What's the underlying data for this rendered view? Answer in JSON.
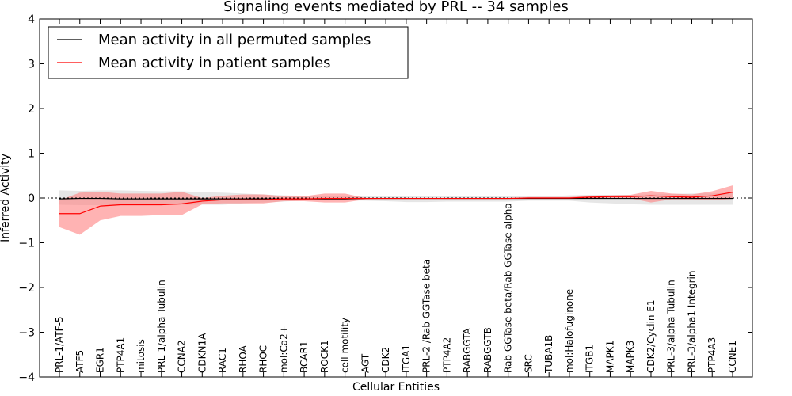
{
  "chart_data": {
    "type": "line",
    "title": "Signaling events mediated by PRL -- 34 samples",
    "xlabel": "Cellular Entities",
    "ylabel": "Inferred Activity",
    "ylim": [
      -4,
      4
    ],
    "yticks": [
      -4,
      -3,
      -2,
      -1,
      0,
      1,
      2,
      3,
      4
    ],
    "ytick_labels": [
      "−4",
      "−3",
      "−2",
      "−1",
      "0",
      "1",
      "2",
      "3",
      "4"
    ],
    "grid": false,
    "legend_position": "top-left",
    "categories": [
      "PRL-1/ATF-5",
      "ATF5",
      "EGR1",
      "PTP4A1",
      "mitosis",
      "PRL-1/alpha Tubulin",
      "CCNA2",
      "CDKN1A",
      "RAC1",
      "RHOA",
      "RHOC",
      "mol:Ca2+",
      "BCAR1",
      "ROCK1",
      "cell motility",
      "AGT",
      "CDK2",
      "ITGA1",
      "PRL-2 /Rab GGTase beta",
      "PTP4A2",
      "RABGGTA",
      "RABGGTB",
      "Rab GGTase beta/Rab GGTase alpha",
      "SRC",
      "TUBA1B",
      "mol:Halofuginone",
      "ITGB1",
      "MAPK1",
      "MAPK3",
      "CDK2/Cyclin E1",
      "PRL-3/alpha Tubulin",
      "PRL-3/alpha1 Integrin",
      "PTP4A3",
      "CCNE1"
    ],
    "series": [
      {
        "name": "Mean activity in all permuted samples",
        "color": "#000000",
        "values": [
          -0.02,
          -0.01,
          -0.01,
          -0.02,
          -0.02,
          -0.02,
          -0.02,
          -0.02,
          -0.02,
          -0.02,
          -0.02,
          -0.02,
          -0.02,
          -0.02,
          -0.02,
          -0.01,
          -0.01,
          -0.01,
          -0.01,
          -0.01,
          -0.01,
          -0.01,
          -0.01,
          -0.01,
          -0.01,
          -0.01,
          -0.01,
          -0.01,
          -0.01,
          -0.01,
          -0.01,
          -0.01,
          -0.01,
          -0.01
        ],
        "band_lower": [
          -0.15,
          -0.16,
          -0.16,
          -0.15,
          -0.15,
          -0.15,
          -0.15,
          -0.15,
          -0.15,
          -0.12,
          -0.1,
          -0.08,
          -0.05,
          -0.05,
          -0.05,
          -0.06,
          -0.07,
          -0.09,
          -0.09,
          -0.08,
          -0.08,
          -0.08,
          -0.08,
          -0.06,
          -0.06,
          -0.06,
          -0.1,
          -0.12,
          -0.14,
          -0.15,
          -0.15,
          -0.15,
          -0.15,
          -0.15
        ],
        "band_upper": [
          0.17,
          0.16,
          0.17,
          0.17,
          0.16,
          0.15,
          0.15,
          0.13,
          0.12,
          0.1,
          0.08,
          0.06,
          0.05,
          0.05,
          0.04,
          0.04,
          0.04,
          0.04,
          0.04,
          0.04,
          0.04,
          0.04,
          0.04,
          0.04,
          0.04,
          0.06,
          0.07,
          0.07,
          0.07,
          0.08,
          0.09,
          0.1,
          0.1,
          0.12
        ]
      },
      {
        "name": "Mean activity in patient samples",
        "color": "#ff0000",
        "values": [
          -0.35,
          -0.35,
          -0.18,
          -0.15,
          -0.15,
          -0.15,
          -0.13,
          -0.07,
          -0.04,
          -0.04,
          -0.04,
          -0.02,
          -0.02,
          -0.01,
          -0.01,
          -0.01,
          -0.01,
          -0.01,
          -0.01,
          -0.01,
          -0.01,
          -0.01,
          -0.01,
          0.0,
          0.0,
          0.0,
          0.02,
          0.03,
          0.03,
          0.05,
          0.03,
          0.02,
          0.05,
          0.13
        ],
        "band_lower": [
          -0.65,
          -0.82,
          -0.5,
          -0.4,
          -0.4,
          -0.38,
          -0.38,
          -0.14,
          -0.12,
          -0.12,
          -0.12,
          -0.07,
          -0.07,
          -0.1,
          -0.1,
          -0.03,
          -0.02,
          -0.02,
          -0.02,
          -0.02,
          -0.02,
          -0.02,
          -0.02,
          -0.02,
          -0.02,
          -0.02,
          -0.01,
          -0.01,
          -0.01,
          -0.1,
          -0.03,
          -0.03,
          -0.05,
          -0.02
        ],
        "band_upper": [
          -0.05,
          0.12,
          0.14,
          0.1,
          0.1,
          0.1,
          0.14,
          0.0,
          0.05,
          0.08,
          0.08,
          0.04,
          0.04,
          0.1,
          0.1,
          0.0,
          0.0,
          0.0,
          0.0,
          0.0,
          0.0,
          0.0,
          0.0,
          0.02,
          0.02,
          0.02,
          0.05,
          0.06,
          0.07,
          0.16,
          0.1,
          0.08,
          0.15,
          0.28
        ]
      }
    ],
    "colors": {
      "permuted_band": "#c8c8c8",
      "patient_band": "#ff8080",
      "zero_line": "#000000"
    }
  }
}
